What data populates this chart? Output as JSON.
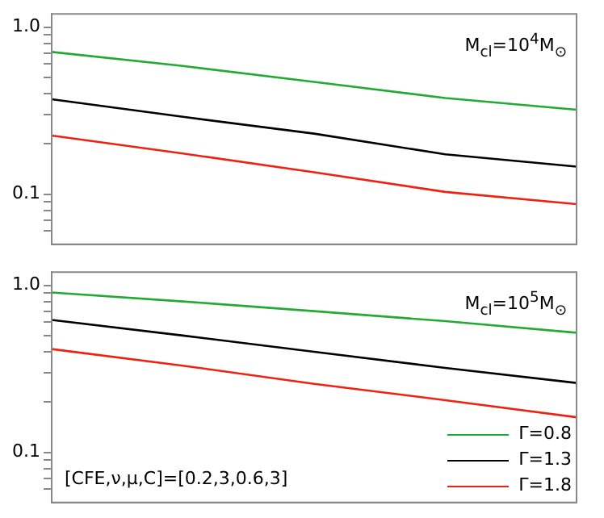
{
  "chart_data": [
    {
      "type": "line",
      "categories": [
        null,
        null,
        null,
        null,
        null
      ],
      "log": "y",
      "ylim": [
        0.05,
        1.2
      ],
      "yticks": [
        {
          "value": 0.06,
          "label": null
        },
        {
          "value": 0.07,
          "label": null
        },
        {
          "value": 0.08,
          "label": null
        },
        {
          "value": 0.09,
          "label": null
        },
        0.1,
        {
          "value": 0.2,
          "label": null
        },
        {
          "value": 0.3,
          "label": null
        },
        {
          "value": 0.4,
          "label": null
        },
        {
          "value": 0.5,
          "label": null
        },
        {
          "value": 0.6,
          "label": null
        },
        {
          "value": 0.7,
          "label": null
        },
        {
          "value": 0.8,
          "label": null
        },
        {
          "value": 0.9,
          "label": null
        },
        {
          "value": 1,
          "label": "1.0"
        }
      ],
      "tick_labels": "y",
      "grid": false,
      "legend": false,
      "marker": "none",
      "series": [
        {
          "color": "#22aa33",
          "values": [
            0.71,
            0.585,
            0.47,
            0.376,
            0.32
          ]
        },
        {
          "color": "#000000",
          "values": [
            0.37,
            0.29,
            0.23,
            0.173,
            0.146
          ]
        },
        {
          "color": "#ee2211",
          "values": [
            0.224,
            0.175,
            0.135,
            0.103,
            0.087
          ]
        }
      ],
      "annotations": [
        "M$_{cl}$=10$^{4}$M$_{⊙}$"
      ]
    },
    {
      "type": "line",
      "categories": [
        null,
        null,
        null,
        null,
        null
      ],
      "log": "y",
      "ylim": [
        0.05,
        1.2
      ],
      "yticks": [
        {
          "value": 0.06,
          "label": null
        },
        {
          "value": 0.07,
          "label": null
        },
        {
          "value": 0.08,
          "label": null
        },
        {
          "value": 0.09,
          "label": null
        },
        0.1,
        {
          "value": 0.2,
          "label": null
        },
        {
          "value": 0.3,
          "label": null
        },
        {
          "value": 0.4,
          "label": null
        },
        {
          "value": 0.5,
          "label": null
        },
        {
          "value": 0.6,
          "label": null
        },
        {
          "value": 0.7,
          "label": null
        },
        {
          "value": 0.8,
          "label": null
        },
        {
          "value": 0.9,
          "label": null
        },
        {
          "value": 1,
          "label": "1.0"
        }
      ],
      "tick_labels": "y",
      "grid": false,
      "legend": "bottom right",
      "marker": "none",
      "series": [
        {
          "name": "Γ=0.8",
          "color": "#22aa33",
          "values": [
            0.905,
            0.8,
            0.7,
            0.61,
            0.52
          ]
        },
        {
          "name": "Γ=1.3",
          "color": "#000000",
          "values": [
            0.62,
            0.5,
            0.4,
            0.32,
            0.26
          ]
        },
        {
          "name": "Γ=1.8",
          "color": "#ee2211",
          "values": [
            0.415,
            0.33,
            0.257,
            0.205,
            0.162
          ]
        }
      ],
      "annotations": [
        "M$_{cl}$=10$^{5}$M$_{⊙}$",
        "[CFE,ν,μ,C]=[0.2,3,0.6,3]"
      ]
    }
  ]
}
